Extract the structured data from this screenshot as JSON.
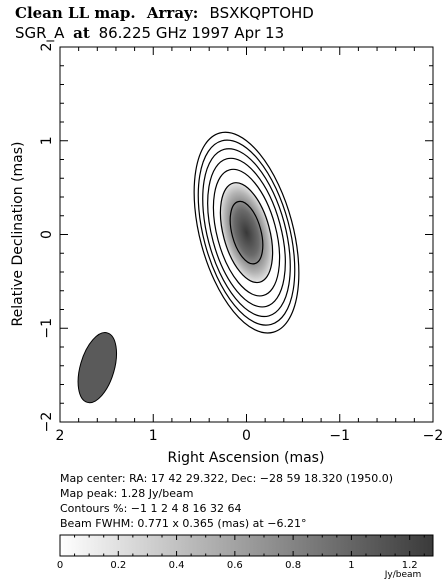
{
  "chart_data": {
    "type": "contour",
    "title_line1": "Clean LL map.",
    "title_array_label": "Array:",
    "title_array_value": "BSXKQPTOHD",
    "title_line2_source": "SGR_A",
    "title_line2_at": "at",
    "title_line2_rest": "86.225 GHz 1997 Apr 13",
    "xlabel": "Right Ascension (mas)",
    "ylabel": "Relative Declination (mas)",
    "xlim": [
      2,
      -2
    ],
    "ylim": [
      -2,
      2
    ],
    "x_ticks": [
      2,
      1,
      0,
      -1,
      -2
    ],
    "y_ticks": [
      -2,
      -1,
      0,
      1,
      2
    ],
    "x_tick_labels": [
      "2",
      "1",
      "0",
      "−1",
      "−2"
    ],
    "y_tick_labels": [
      "−2",
      "−1",
      "0",
      "1",
      "2"
    ],
    "source": {
      "center": [
        0.0,
        0.02
      ],
      "semi_minor_outer": 0.5,
      "semi_major_outer": 1.1,
      "position_angle_deg": -15
    },
    "contour_levels_percent": [
      -1,
      1,
      2,
      4,
      8,
      16,
      32,
      64
    ],
    "beam": {
      "center": [
        1.6,
        -1.42
      ],
      "major": 0.771,
      "minor": 0.365,
      "pa_deg": -6.21
    },
    "info": {
      "map_center": "Map center:  RA: 17 42 29.322,  Dec: −28 59 18.320 (1950.0)",
      "map_peak": "Map peak: 1.28 Jy/beam",
      "contours": "Contours %: −1 1 2 4 8 16 32 64",
      "beam_fwhm": "Beam FWHM: 0.771 x 0.365 (mas) at −6.21°"
    },
    "colorbar": {
      "min": 0,
      "max": 1.28,
      "ticks": [
        0,
        0.2,
        0.4,
        0.6,
        0.8,
        1,
        1.2
      ],
      "tick_labels": [
        "0",
        "0.2",
        "0.4",
        "0.6",
        "0.8",
        "1",
        "1.2"
      ],
      "unit": "Jy/beam"
    }
  }
}
